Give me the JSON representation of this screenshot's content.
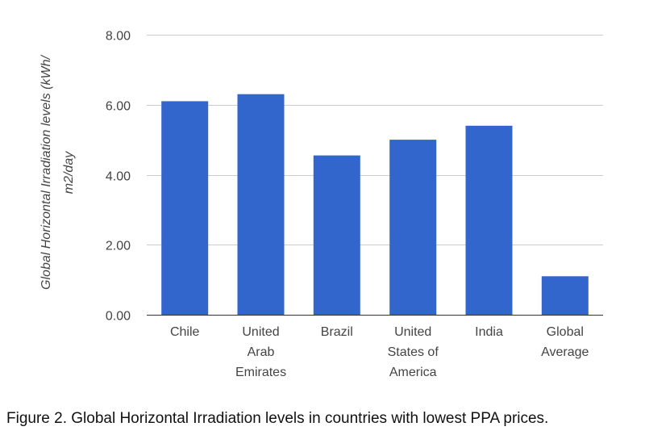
{
  "chart_data": {
    "type": "bar",
    "categories": [
      "Chile",
      "United Arab Emirates",
      "Brazil",
      "United States of America",
      "India",
      "Global Average"
    ],
    "category_label_lines": [
      [
        "Chile"
      ],
      [
        "United",
        "Arab",
        "Emirates"
      ],
      [
        "Brazil"
      ],
      [
        "United",
        "States of",
        "America"
      ],
      [
        "India"
      ],
      [
        "Global",
        "Average"
      ]
    ],
    "values": [
      6.1,
      6.3,
      4.55,
      5.0,
      5.4,
      1.1
    ],
    "ylabel_lines": [
      "Global Horizontal Irradiation levels (kWh/",
      "m2/day"
    ],
    "ylim": [
      0,
      8
    ],
    "yticks": [
      "0.00",
      "2.00",
      "4.00",
      "6.00",
      "8.00"
    ],
    "grid": true,
    "bar_color": "#3366cc",
    "grid_color": "#cccccc"
  },
  "caption": "Figure 2. Global Horizontal Irradiation levels in countries with lowest PPA prices."
}
